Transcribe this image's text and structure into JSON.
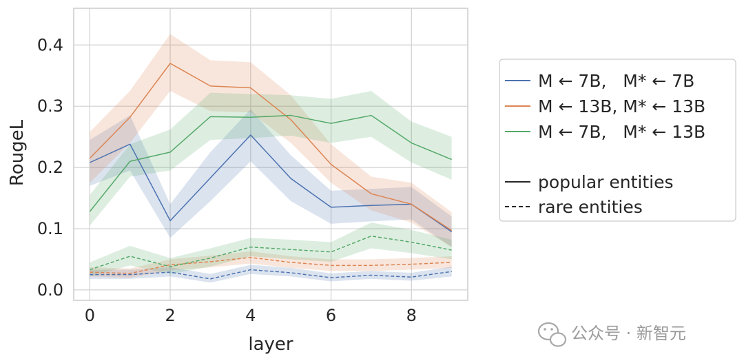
{
  "chart_data": {
    "type": "line",
    "title": "",
    "xlabel": "layer",
    "ylabel": "RougeL",
    "xlim": [
      -0.4,
      9.4
    ],
    "ylim": [
      -0.017,
      0.46
    ],
    "x_ticks": [
      0,
      2,
      4,
      6,
      8
    ],
    "x_tick_labels": [
      "0",
      "2",
      "4",
      "6",
      "8"
    ],
    "y_ticks": [
      0.0,
      0.1,
      0.2,
      0.3,
      0.4
    ],
    "y_tick_labels": [
      "0.0",
      "0.1",
      "0.2",
      "0.3",
      "0.4"
    ],
    "grid": true,
    "legend_position": "right",
    "x": [
      0,
      1,
      2,
      3,
      4,
      5,
      6,
      7,
      8,
      9
    ],
    "series": [
      {
        "name": "M ← 7B,   M* ← 7B",
        "color": "#4c72b0",
        "style": "solid",
        "entities": "popular entities",
        "values": [
          0.208,
          0.238,
          0.113,
          0.183,
          0.253,
          0.182,
          0.135,
          0.138,
          0.14,
          0.095
        ],
        "lower": [
          0.17,
          0.195,
          0.085,
          0.145,
          0.21,
          0.145,
          0.108,
          0.112,
          0.115,
          0.07
        ],
        "upper": [
          0.245,
          0.285,
          0.14,
          0.225,
          0.295,
          0.22,
          0.162,
          0.165,
          0.168,
          0.12
        ]
      },
      {
        "name": "M ← 13B, M* ← 13B",
        "color": "#dd8452",
        "style": "solid",
        "entities": "popular entities",
        "values": [
          0.215,
          0.282,
          0.37,
          0.333,
          0.33,
          0.278,
          0.205,
          0.157,
          0.14,
          0.097
        ],
        "lower": [
          0.175,
          0.24,
          0.325,
          0.292,
          0.29,
          0.24,
          0.175,
          0.13,
          0.11,
          0.07
        ],
        "upper": [
          0.258,
          0.325,
          0.418,
          0.375,
          0.372,
          0.318,
          0.238,
          0.185,
          0.175,
          0.127
        ]
      },
      {
        "name": "M ← 7B,   M* ← 13B",
        "color": "#55a868",
        "style": "solid",
        "entities": "popular entities",
        "values": [
          0.128,
          0.21,
          0.225,
          0.283,
          0.282,
          0.285,
          0.272,
          0.285,
          0.24,
          0.213
        ],
        "lower": [
          0.105,
          0.185,
          0.195,
          0.245,
          0.248,
          0.252,
          0.24,
          0.25,
          0.208,
          0.18
        ],
        "upper": [
          0.155,
          0.238,
          0.262,
          0.322,
          0.32,
          0.318,
          0.312,
          0.325,
          0.275,
          0.25
        ]
      },
      {
        "name": "M ← 7B,   M* ← 7B",
        "color": "#4c72b0",
        "style": "dashed",
        "entities": "rare entities",
        "values": [
          0.025,
          0.025,
          0.029,
          0.018,
          0.033,
          0.028,
          0.02,
          0.024,
          0.021,
          0.03
        ],
        "lower": [
          0.018,
          0.018,
          0.022,
          0.012,
          0.026,
          0.022,
          0.014,
          0.018,
          0.015,
          0.022
        ],
        "upper": [
          0.033,
          0.033,
          0.037,
          0.026,
          0.041,
          0.036,
          0.027,
          0.031,
          0.028,
          0.038
        ]
      },
      {
        "name": "M ← 13B, M* ← 13B",
        "color": "#dd8452",
        "style": "dashed",
        "entities": "rare entities",
        "values": [
          0.029,
          0.027,
          0.041,
          0.046,
          0.053,
          0.045,
          0.04,
          0.04,
          0.042,
          0.045
        ],
        "lower": [
          0.022,
          0.02,
          0.032,
          0.037,
          0.043,
          0.036,
          0.031,
          0.031,
          0.033,
          0.036
        ],
        "upper": [
          0.037,
          0.035,
          0.05,
          0.056,
          0.063,
          0.055,
          0.05,
          0.05,
          0.052,
          0.055
        ]
      },
      {
        "name": "M ← 7B,   M* ← 13B",
        "color": "#55a868",
        "style": "dashed",
        "entities": "rare entities",
        "values": [
          0.033,
          0.055,
          0.038,
          0.052,
          0.07,
          0.066,
          0.062,
          0.088,
          0.078,
          0.065
        ],
        "lower": [
          0.022,
          0.04,
          0.026,
          0.038,
          0.055,
          0.05,
          0.046,
          0.068,
          0.06,
          0.05
        ],
        "upper": [
          0.045,
          0.072,
          0.052,
          0.068,
          0.085,
          0.082,
          0.078,
          0.11,
          0.098,
          0.082
        ]
      }
    ],
    "legend": {
      "entries": [
        {
          "label": "M ← 7B,   M* ← 7B",
          "color": "#4c72b0",
          "style": "solid"
        },
        {
          "label": "M ← 13B, M* ← 13B",
          "color": "#dd8452",
          "style": "solid"
        },
        {
          "label": "M ← 7B,   M* ← 13B",
          "color": "#55a868",
          "style": "solid"
        },
        {
          "label": "popular entities",
          "color": "#262626",
          "style": "solid"
        },
        {
          "label": "rare entities",
          "color": "#262626",
          "style": "dashed"
        }
      ]
    }
  },
  "watermark": {
    "text": "公众号 · 新智元",
    "icon": "wechat-icon"
  }
}
